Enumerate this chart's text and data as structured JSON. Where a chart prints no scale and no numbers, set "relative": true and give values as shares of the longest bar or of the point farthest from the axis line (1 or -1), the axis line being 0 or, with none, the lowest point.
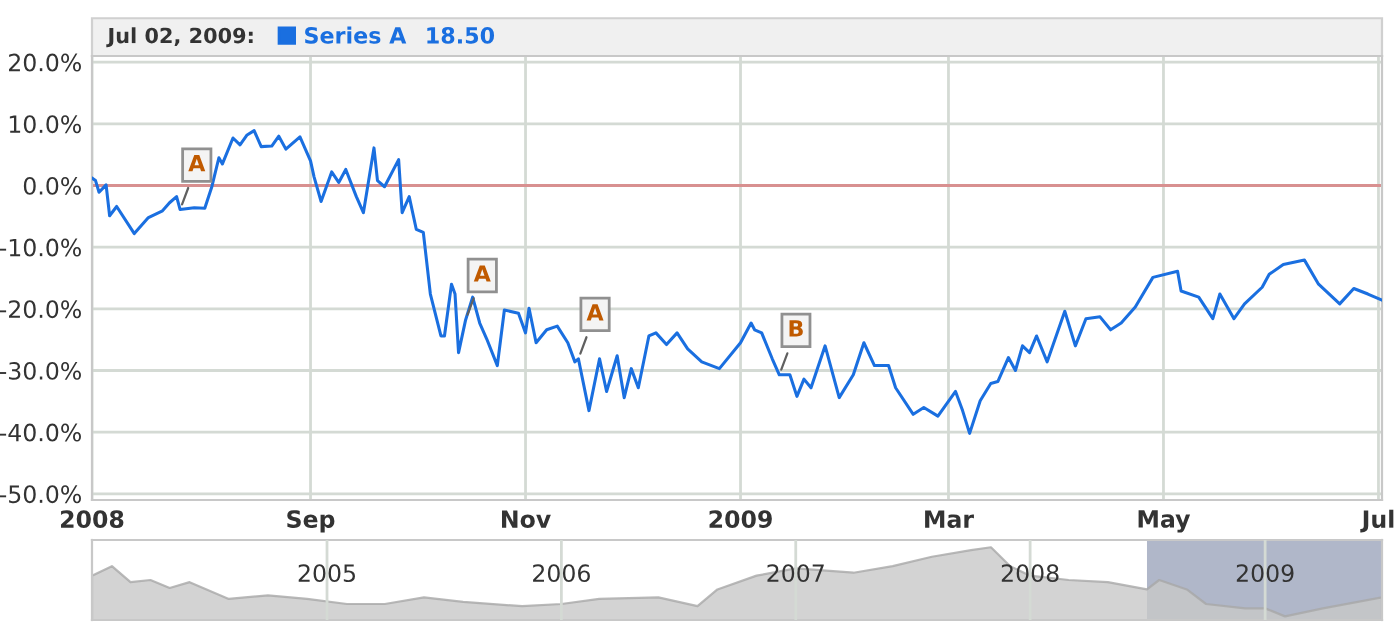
{
  "chart_data": [
    {
      "type": "line",
      "legend": "top left",
      "grid": true,
      "marker": "none",
      "line_style": "solid",
      "annotations": [
        "Jul 02, 2009:",
        "18.50",
        {
          "text": "A",
          "x": "2008-07-26",
          "y": -3.9
        },
        {
          "text": "A",
          "x": "2008-10-15",
          "y": -21.8
        },
        {
          "text": "A",
          "x": "2008-11-16",
          "y": -28.1
        },
        {
          "text": "B",
          "x": "2009-01-12",
          "y": -30.7
        }
      ],
      "ylim": [
        -51,
        21
      ],
      "yticks": [
        {
          "value": 20,
          "label": "20.0%"
        },
        {
          "value": 10,
          "label": "10.0%"
        },
        {
          "value": 0,
          "label": "0.0%"
        },
        {
          "value": -10,
          "label": "-10.0%"
        },
        {
          "value": -20,
          "label": "-20.0%"
        },
        {
          "value": -30,
          "label": "-30.0%"
        },
        {
          "value": -40,
          "label": "-40.0%"
        },
        {
          "value": -50,
          "label": "-50.0%"
        }
      ],
      "xlim": [
        "2008-07-01",
        "2009-07-02"
      ],
      "xticks": [
        {
          "value": "2008-07-01",
          "label": "2008"
        },
        {
          "value": "2008-09-01",
          "label": "Sep"
        },
        {
          "value": "2008-11-01",
          "label": "Nov"
        },
        {
          "value": "2009-01-01",
          "label": "2009"
        },
        {
          "value": "2009-03-01",
          "label": "Mar"
        },
        {
          "value": "2009-05-01",
          "label": "May"
        },
        {
          "value": "2009-07-01",
          "label": "Jul"
        }
      ],
      "ref_lines": [
        {
          "axis": "y",
          "value": 0,
          "label": null,
          "color": "#d89090"
        }
      ],
      "series": [
        {
          "name": "Series A",
          "color": "#1a6fe0",
          "x": [
            "2008-07-01",
            "2008-07-02",
            "2008-07-03",
            "2008-07-05",
            "2008-07-06",
            "2008-07-08",
            "2008-07-13",
            "2008-07-17",
            "2008-07-21",
            "2008-07-23",
            "2008-07-25",
            "2008-07-26",
            "2008-07-30",
            "2008-08-02",
            "2008-08-04",
            "2008-08-06",
            "2008-08-07",
            "2008-08-10",
            "2008-08-12",
            "2008-08-14",
            "2008-08-16",
            "2008-08-18",
            "2008-08-21",
            "2008-08-23",
            "2008-08-25",
            "2008-08-29",
            "2008-09-01",
            "2008-09-02",
            "2008-09-04",
            "2008-09-07",
            "2008-09-09",
            "2008-09-11",
            "2008-09-14",
            "2008-09-16",
            "2008-09-19",
            "2008-09-20",
            "2008-09-22",
            "2008-09-26",
            "2008-09-27",
            "2008-09-29",
            "2008-10-01",
            "2008-10-03",
            "2008-10-05",
            "2008-10-08",
            "2008-10-09",
            "2008-10-11",
            "2008-10-12",
            "2008-10-13",
            "2008-10-15",
            "2008-10-17",
            "2008-10-19",
            "2008-10-21",
            "2008-10-24",
            "2008-10-26",
            "2008-10-30",
            "2008-11-01",
            "2008-11-02",
            "2008-11-04",
            "2008-11-07",
            "2008-11-10",
            "2008-11-13",
            "2008-11-15",
            "2008-11-16",
            "2008-11-19",
            "2008-11-22",
            "2008-11-24",
            "2008-11-27",
            "2008-11-29",
            "2008-12-01",
            "2008-12-03",
            "2008-12-06",
            "2008-12-08",
            "2008-12-11",
            "2008-12-14",
            "2008-12-17",
            "2008-12-21",
            "2008-12-26",
            "2009-01-01",
            "2009-01-04",
            "2009-01-05",
            "2009-01-07",
            "2009-01-10",
            "2009-01-12",
            "2009-01-15",
            "2009-01-17",
            "2009-01-19",
            "2009-01-21",
            "2009-01-25",
            "2009-01-29",
            "2009-02-02",
            "2009-02-05",
            "2009-02-08",
            "2009-02-12",
            "2009-02-14",
            "2009-02-19",
            "2009-02-22",
            "2009-02-26",
            "2009-03-03",
            "2009-03-05",
            "2009-03-07",
            "2009-03-10",
            "2009-03-13",
            "2009-03-15",
            "2009-03-18",
            "2009-03-20",
            "2009-03-22",
            "2009-03-24",
            "2009-03-26",
            "2009-03-29",
            "2009-04-03",
            "2009-04-06",
            "2009-04-09",
            "2009-04-13",
            "2009-04-16",
            "2009-04-19",
            "2009-04-23",
            "2009-04-28",
            "2009-05-05",
            "2009-05-06",
            "2009-05-11",
            "2009-05-15",
            "2009-05-17",
            "2009-05-21",
            "2009-05-24",
            "2009-05-29",
            "2009-05-31",
            "2009-06-04",
            "2009-06-10",
            "2009-06-14",
            "2009-06-20",
            "2009-06-24",
            "2009-06-28",
            "2009-07-02"
          ],
          "values": [
            1.2,
            0.8,
            -1.1,
            0.1,
            -4.9,
            -3.4,
            -7.8,
            -5.2,
            -4.1,
            -2.8,
            -1.8,
            -3.9,
            -3.6,
            -3.7,
            -0.2,
            4.5,
            3.5,
            7.7,
            6.6,
            8.2,
            8.9,
            6.3,
            6.4,
            8.0,
            5.9,
            7.9,
            4.0,
            1.4,
            -2.6,
            2.2,
            0.5,
            2.6,
            -1.8,
            -4.4,
            6.1,
            0.8,
            -0.2,
            4.2,
            -4.4,
            -1.8,
            -7.1,
            -7.6,
            -17.6,
            -24.4,
            -24.4,
            -16.0,
            -17.6,
            -27.1,
            -21.8,
            -18.1,
            -22.3,
            -24.9,
            -29.2,
            -20.2,
            -20.7,
            -23.9,
            -19.9,
            -25.5,
            -23.4,
            -22.8,
            -25.5,
            -28.6,
            -28.1,
            -36.5,
            -28.1,
            -33.4,
            -27.6,
            -34.4,
            -29.7,
            -32.8,
            -24.4,
            -23.9,
            -25.8,
            -23.9,
            -26.5,
            -28.6,
            -29.7,
            -25.5,
            -22.3,
            -23.4,
            -23.9,
            -28.1,
            -30.7,
            -30.7,
            -34.2,
            -31.4,
            -32.8,
            -26.0,
            -34.4,
            -30.7,
            -25.5,
            -29.2,
            -29.2,
            -32.8,
            -37.1,
            -36.0,
            -37.4,
            -33.4,
            -36.5,
            -40.2,
            -34.9,
            -32.1,
            -31.8,
            -27.9,
            -30.0,
            -26.0,
            -27.1,
            -24.4,
            -28.6,
            -20.4,
            -26.0,
            -21.6,
            -21.3,
            -23.4,
            -22.3,
            -19.7,
            -14.9,
            -13.9,
            -17.1,
            -18.1,
            -21.6,
            -17.6,
            -21.6,
            -19.2,
            -16.5,
            -14.4,
            -12.8,
            -12.1,
            -16.0,
            -19.2,
            -16.7,
            -17.6,
            -18.6
          ]
        }
      ]
    },
    {
      "type": "area",
      "relative": true,
      "grid": "x",
      "tick_labels": "x",
      "xlim": [
        "2004-01-01",
        "2009-07-02"
      ],
      "xticks": [
        {
          "value": "2005-01-01",
          "label": "2005"
        },
        {
          "value": "2006-01-01",
          "label": "2006"
        },
        {
          "value": "2007-01-01",
          "label": "2007"
        },
        {
          "value": "2008-01-01",
          "label": "2008"
        },
        {
          "value": "2009-01-01",
          "label": "2009"
        }
      ],
      "bands": [
        {
          "axis": "x",
          "from": "2008-07-01",
          "to": "2009-07-02",
          "label": null,
          "color": "#6f7c9c"
        }
      ],
      "series": [
        {
          "color": "#c8c8c8",
          "x": [
            "2004-01-01",
            "2004-02-01",
            "2004-03-01",
            "2004-04-01",
            "2004-05-01",
            "2004-06-01",
            "2004-08-01",
            "2004-10-01",
            "2004-12-01",
            "2005-02-01",
            "2005-04-01",
            "2005-06-01",
            "2005-08-01",
            "2005-11-01",
            "2006-01-01",
            "2006-03-01",
            "2006-06-01",
            "2006-08-01",
            "2006-09-01",
            "2006-11-01",
            "2007-01-01",
            "2007-04-01",
            "2007-06-01",
            "2007-08-01",
            "2007-10-01",
            "2007-11-01",
            "2007-12-01",
            "2008-01-01",
            "2008-03-01",
            "2008-05-01",
            "2008-07-01",
            "2008-07-20",
            "2008-09-01",
            "2008-10-01",
            "2008-12-01",
            "2009-01-01",
            "2009-02-01",
            "2009-04-01",
            "2009-07-02"
          ],
          "values": [
            0.61,
            0.74,
            0.52,
            0.55,
            0.44,
            0.52,
            0.29,
            0.34,
            0.29,
            0.22,
            0.22,
            0.31,
            0.25,
            0.19,
            0.22,
            0.29,
            0.31,
            0.19,
            0.42,
            0.61,
            0.71,
            0.65,
            0.74,
            0.87,
            0.96,
            1.0,
            0.74,
            0.61,
            0.55,
            0.52,
            0.42,
            0.55,
            0.42,
            0.22,
            0.16,
            0.16,
            0.05,
            0.16,
            0.31
          ]
        }
      ]
    }
  ]
}
